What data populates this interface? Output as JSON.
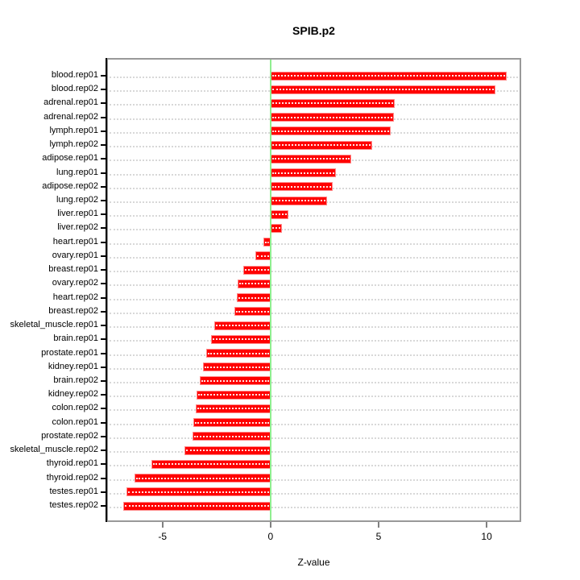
{
  "title": "SPIB.p2",
  "chart_data": {
    "type": "bar",
    "orientation": "horizontal",
    "title": "SPIB.p2",
    "xlabel": "Z-value",
    "ylabel": "",
    "xlim": [
      -7.6,
      11.6
    ],
    "x_ticks": [
      -5,
      0,
      5,
      10
    ],
    "grid": "dotted horizontal line per category",
    "legend": "none",
    "bar_color": "#ff0000",
    "zero_line_color": "#90ee90",
    "categories": [
      "blood.rep01",
      "blood.rep02",
      "adrenal.rep01",
      "adrenal.rep02",
      "lymph.rep01",
      "lymph.rep02",
      "adipose.rep01",
      "lung.rep01",
      "adipose.rep02",
      "lung.rep02",
      "liver.rep01",
      "liver.rep02",
      "heart.rep01",
      "ovary.rep01",
      "breast.rep01",
      "ovary.rep02",
      "heart.rep02",
      "breast.rep02",
      "skeletal_muscle.rep01",
      "brain.rep01",
      "prostate.rep01",
      "kidney.rep01",
      "brain.rep02",
      "kidney.rep02",
      "colon.rep02",
      "colon.rep01",
      "prostate.rep02",
      "skeletal_muscle.rep02",
      "thyroid.rep01",
      "thyroid.rep02",
      "testes.rep01",
      "testes.rep02"
    ],
    "values": [
      10.93,
      10.41,
      5.74,
      5.71,
      5.56,
      4.69,
      3.72,
      3.02,
      2.89,
      2.62,
      0.82,
      0.51,
      -0.33,
      -0.72,
      -1.26,
      -1.53,
      -1.57,
      -1.69,
      -2.62,
      -2.74,
      -2.97,
      -3.12,
      -3.28,
      -3.43,
      -3.45,
      -3.59,
      -3.61,
      -3.99,
      -5.53,
      -6.3,
      -6.65,
      -6.83
    ]
  }
}
